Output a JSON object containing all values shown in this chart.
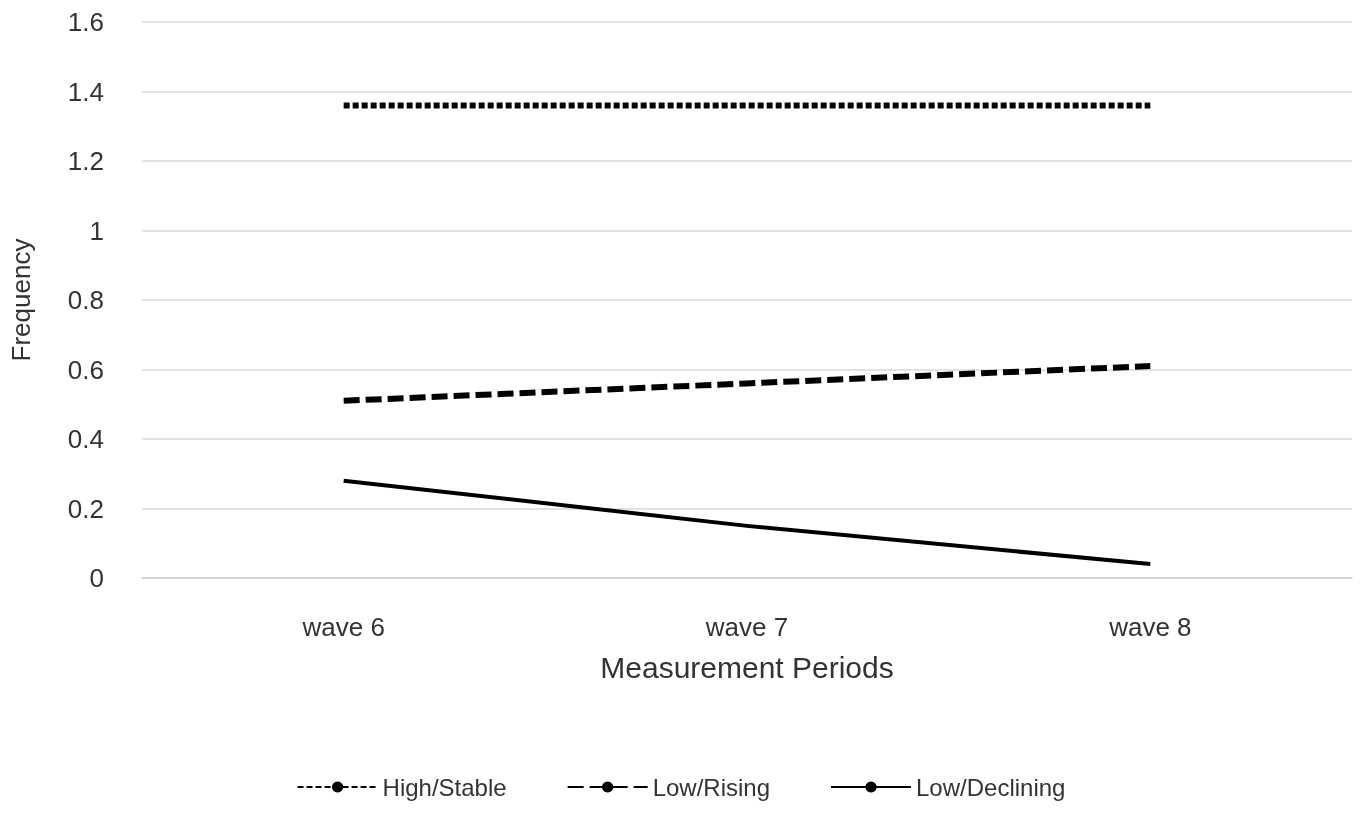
{
  "chart_data": {
    "type": "line",
    "xlabel": "Measurement Periods",
    "ylabel": "Frequency",
    "categories": [
      "wave 6",
      "wave 7",
      "wave 8"
    ],
    "series": [
      {
        "name": "High/Stable",
        "color": "#000000",
        "line_style": "dotted",
        "values": [
          1.36,
          1.36,
          1.36
        ]
      },
      {
        "name": "Low/Rising",
        "color": "#000000",
        "line_style": "dashed",
        "values": [
          0.51,
          0.56,
          0.61
        ]
      },
      {
        "name": "Low/Declining",
        "color": "#000000",
        "line_style": "solid",
        "values": [
          0.28,
          0.15,
          0.04
        ]
      }
    ],
    "ylim": [
      0,
      1.6
    ],
    "yticks": [
      0,
      0.2,
      0.4,
      0.6,
      0.8,
      1,
      1.2,
      1.4,
      1.6
    ],
    "grid": "y",
    "legend": "bottom",
    "marker": "none"
  }
}
